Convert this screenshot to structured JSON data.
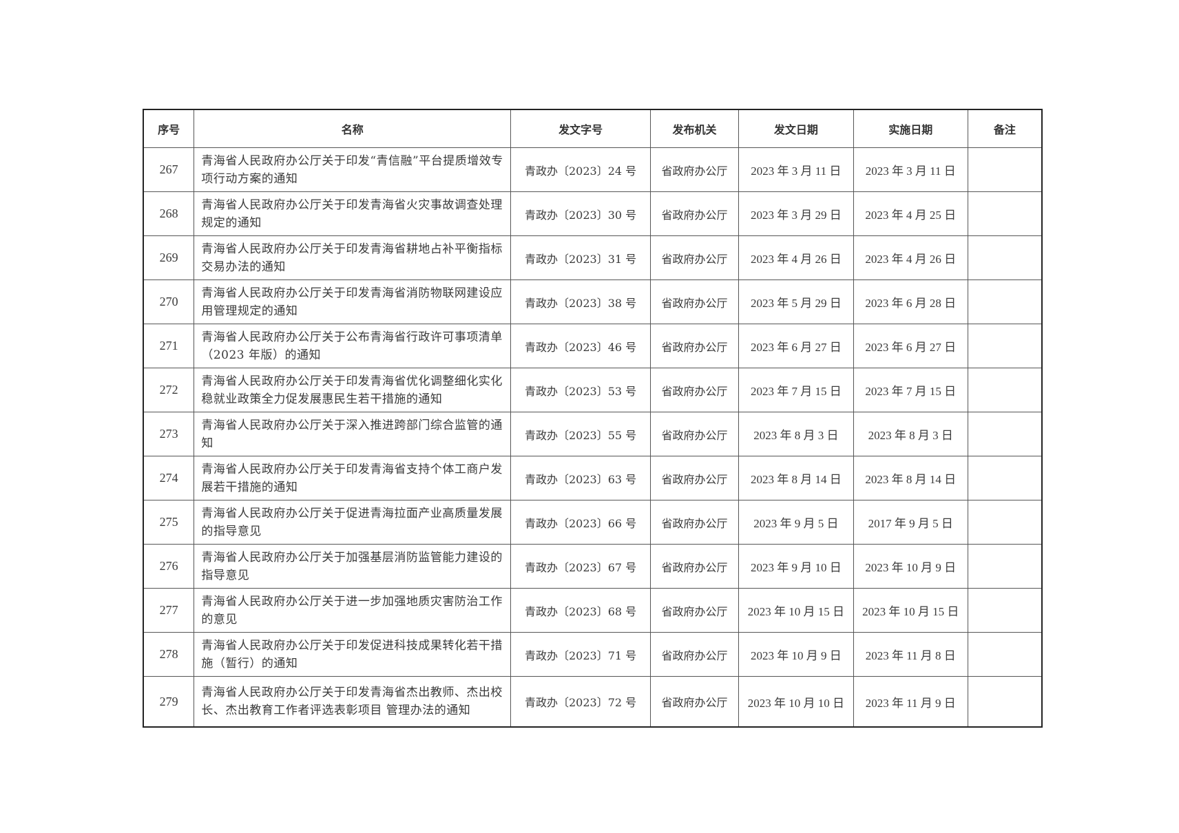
{
  "table": {
    "headers": [
      "序号",
      "名称",
      "发文字号",
      "发布机关",
      "发文日期",
      "实施日期",
      "备注"
    ],
    "rows": [
      {
        "no": "267",
        "name": "青海省人民政府办公厅关于印发“青信融”平台提质增效专项行动方案的通知",
        "doc": "青政办〔2023〕24 号",
        "org": "省政府办公厅",
        "issue": "2023 年 3 月 11 日",
        "effective": "2023 年 3 月 11 日",
        "note": ""
      },
      {
        "no": "268",
        "name": "青海省人民政府办公厅关于印发青海省火灾事故调查处理规定的通知",
        "doc": "青政办〔2023〕30 号",
        "org": "省政府办公厅",
        "issue": "2023 年 3 月 29 日",
        "effective": "2023 年 4 月 25 日",
        "note": ""
      },
      {
        "no": "269",
        "name": "青海省人民政府办公厅关于印发青海省耕地占补平衡指标交易办法的通知",
        "doc": "青政办〔2023〕31 号",
        "org": "省政府办公厅",
        "issue": "2023 年 4 月 26 日",
        "effective": "2023 年 4 月 26 日",
        "note": ""
      },
      {
        "no": "270",
        "name": "青海省人民政府办公厅关于印发青海省消防物联网建设应用管理规定的通知",
        "doc": "青政办〔2023〕38 号",
        "org": "省政府办公厅",
        "issue": "2023 年 5 月 29 日",
        "effective": "2023 年 6 月 28 日",
        "note": ""
      },
      {
        "no": "271",
        "name": "青海省人民政府办公厅关于公布青海省行政许可事项清单（2023 年版）的通知",
        "doc": "青政办〔2023〕46 号",
        "org": "省政府办公厅",
        "issue": "2023 年 6 月 27 日",
        "effective": "2023 年 6 月 27 日",
        "note": ""
      },
      {
        "no": "272",
        "name": "青海省人民政府办公厅关于印发青海省优化调整细化实化稳就业政策全力促发展惠民生若干措施的通知",
        "doc": "青政办〔2023〕53 号",
        "org": "省政府办公厅",
        "issue": "2023 年 7 月 15 日",
        "effective": "2023 年 7 月 15 日",
        "note": ""
      },
      {
        "no": "273",
        "name": "青海省人民政府办公厅关于深入推进跨部门综合监管的通知",
        "doc": "青政办〔2023〕55 号",
        "org": "省政府办公厅",
        "issue": "2023 年 8 月 3 日",
        "effective": "2023 年 8 月 3 日",
        "note": ""
      },
      {
        "no": "274",
        "name": "青海省人民政府办公厅关于印发青海省支持个体工商户发展若干措施的通知",
        "doc": "青政办〔2023〕63 号",
        "org": "省政府办公厅",
        "issue": "2023 年 8 月 14 日",
        "effective": "2023 年 8 月 14 日",
        "note": ""
      },
      {
        "no": "275",
        "name": "青海省人民政府办公厅关于促进青海拉面产业高质量发展的指导意见",
        "doc": "青政办〔2023〕66 号",
        "org": "省政府办公厅",
        "issue": "2023 年 9 月 5 日",
        "effective": "2017 年 9 月 5 日",
        "note": ""
      },
      {
        "no": "276",
        "name": "青海省人民政府办公厅关于加强基层消防监管能力建设的指导意见",
        "doc": "青政办〔2023〕67 号",
        "org": "省政府办公厅",
        "issue": "2023 年 9 月 10 日",
        "effective": "2023 年 10 月 9 日",
        "note": ""
      },
      {
        "no": "277",
        "name": "青海省人民政府办公厅关于进一步加强地质灾害防治工作的意见",
        "doc": "青政办〔2023〕68 号",
        "org": "省政府办公厅",
        "issue": "2023 年 10 月 15 日",
        "effective": "2023 年 10 月 15 日",
        "note": ""
      },
      {
        "no": "278",
        "name": "青海省人民政府办公厅关于印发促进科技成果转化若干措施（暂行）的通知",
        "doc": "青政办〔2023〕71 号",
        "org": "省政府办公厅",
        "issue": "2023 年 10 月 9 日",
        "effective": "2023 年 11 月 8 日",
        "note": ""
      },
      {
        "no": "279",
        "name": "青海省人民政府办公厅关于印发青海省杰出教师、杰出校长、杰出教育工作者评选表彰项目 管理办法的通知",
        "doc": "青政办〔2023〕72 号",
        "org": "省政府办公厅",
        "issue": "2023 年 10 月 10 日",
        "effective": "2023 年 11 月 9 日",
        "note": ""
      }
    ]
  }
}
